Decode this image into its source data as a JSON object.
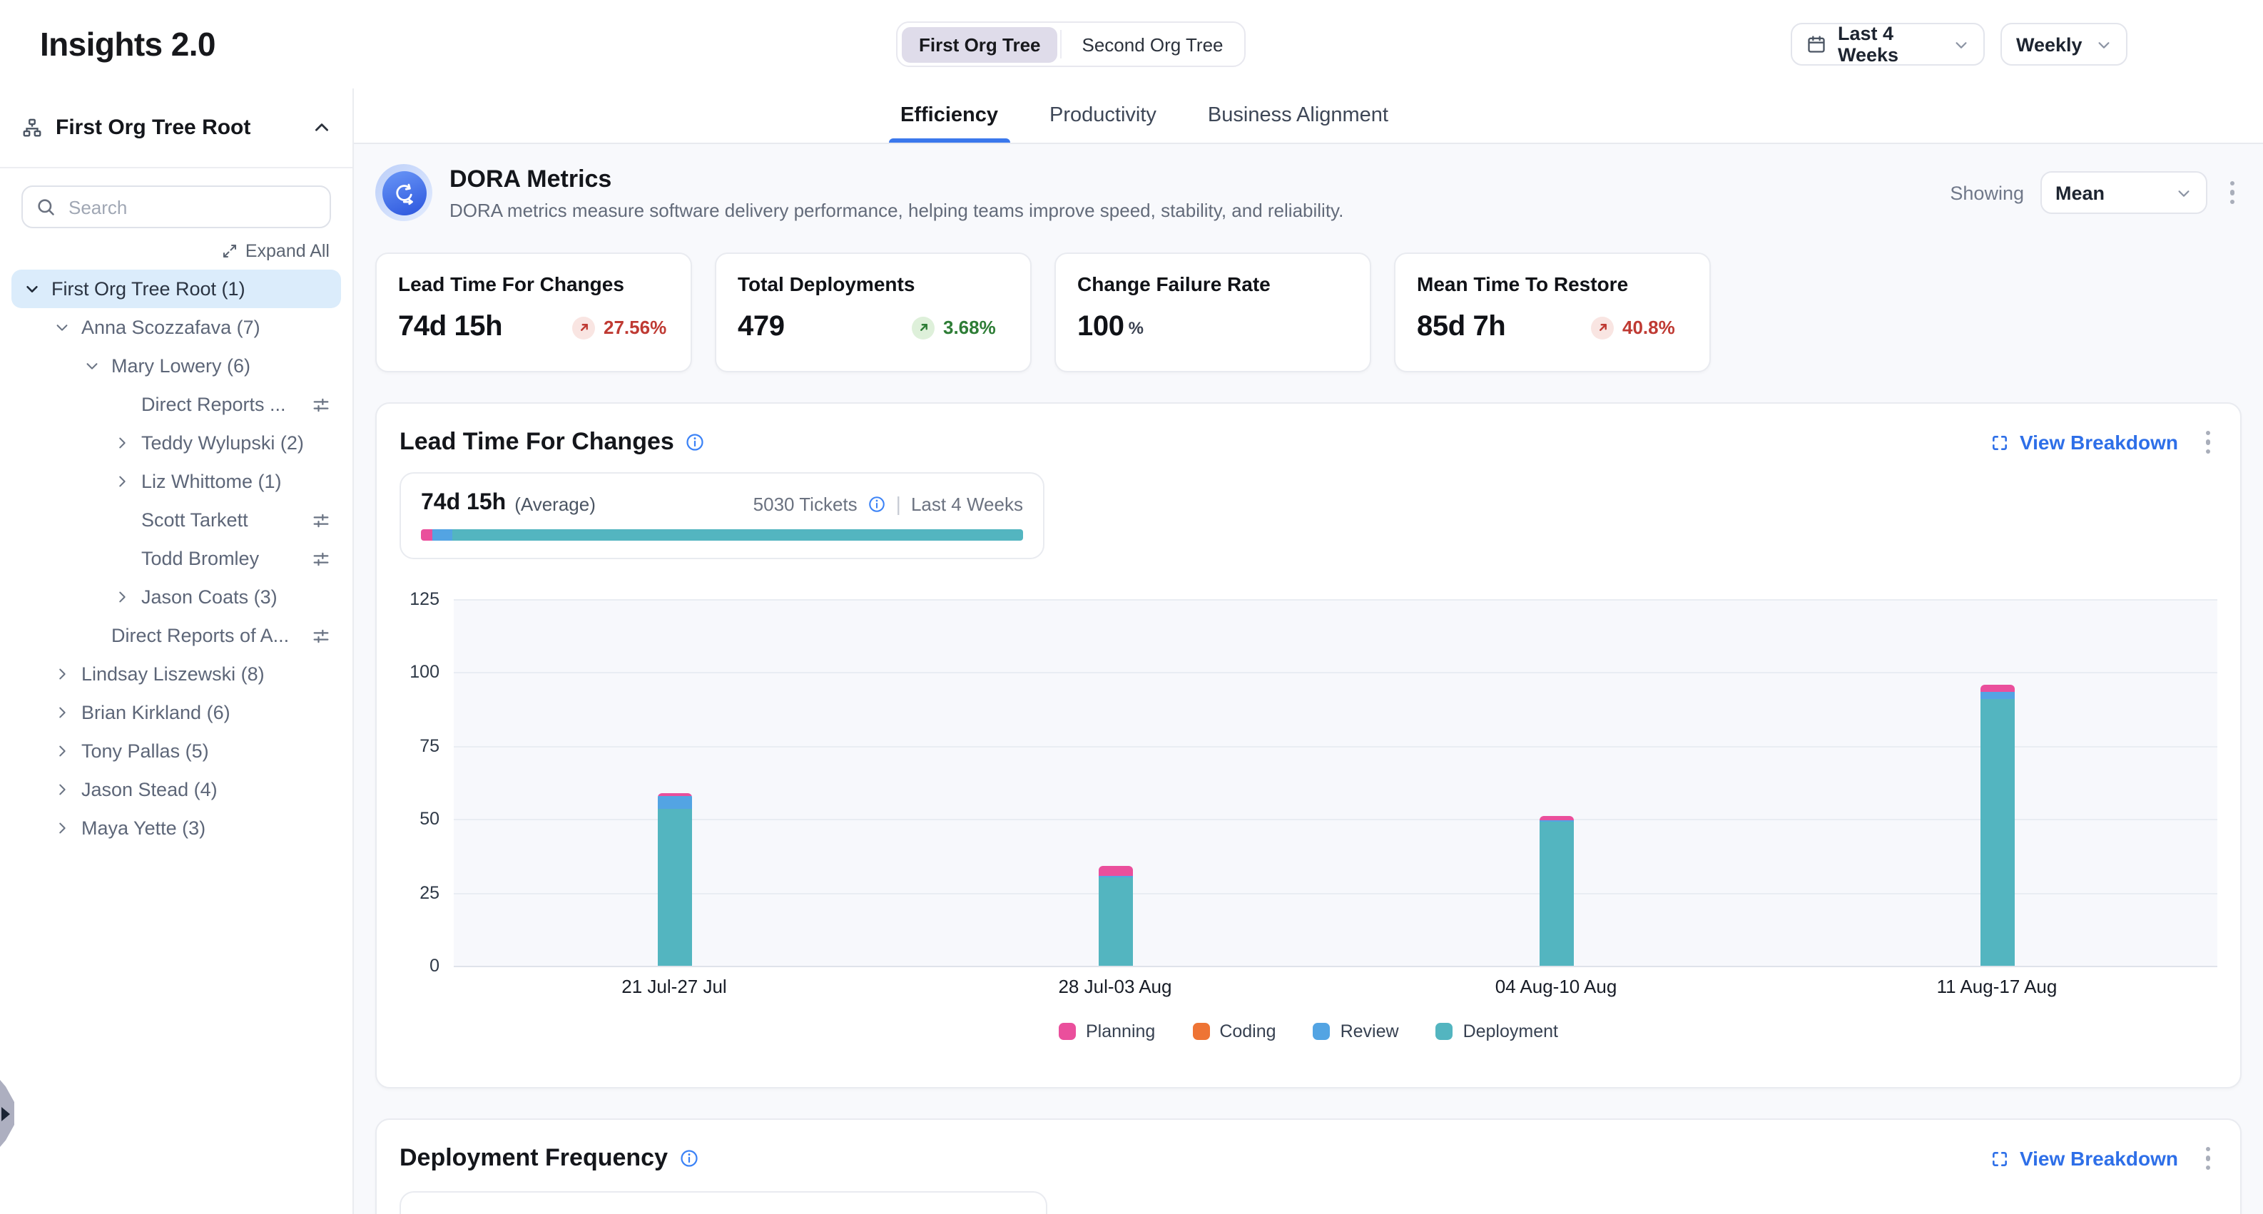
{
  "app": {
    "title": "Insights 2.0"
  },
  "header": {
    "org_toggle": {
      "options": [
        "First Org Tree",
        "Second Org Tree"
      ],
      "selected_index": 0
    },
    "date_range_label": "Last 4 Weeks",
    "granularity_label": "Weekly"
  },
  "sidebar": {
    "title": "First Org Tree Root",
    "search_placeholder": "Search",
    "expand_all_label": "Expand All",
    "tree": [
      {
        "label": "First Org Tree Root (1)",
        "level": 0,
        "chevron": "down",
        "selected": true,
        "filter_icon": false
      },
      {
        "label": "Anna Scozzafava (7)",
        "level": 1,
        "chevron": "down",
        "selected": false,
        "filter_icon": false
      },
      {
        "label": "Mary Lowery (6)",
        "level": 2,
        "chevron": "down",
        "selected": false,
        "filter_icon": false
      },
      {
        "label": "Direct Reports ...",
        "level": 3,
        "chevron": "none",
        "selected": false,
        "filter_icon": true
      },
      {
        "label": "Teddy Wylupski (2)",
        "level": 3,
        "chevron": "right",
        "selected": false,
        "filter_icon": false
      },
      {
        "label": "Liz Whittome (1)",
        "level": 3,
        "chevron": "right",
        "selected": false,
        "filter_icon": false
      },
      {
        "label": "Scott Tarkett",
        "level": 3,
        "chevron": "none",
        "selected": false,
        "filter_icon": true
      },
      {
        "label": "Todd Bromley",
        "level": 3,
        "chevron": "none",
        "selected": false,
        "filter_icon": true
      },
      {
        "label": "Jason Coats (3)",
        "level": 3,
        "chevron": "right",
        "selected": false,
        "filter_icon": false
      },
      {
        "label": "Direct Reports of A...",
        "level": 2,
        "chevron": "none",
        "selected": false,
        "filter_icon": true
      },
      {
        "label": "Lindsay Liszewski (8)",
        "level": 1,
        "chevron": "right",
        "selected": false,
        "filter_icon": false
      },
      {
        "label": "Brian Kirkland (6)",
        "level": 1,
        "chevron": "right",
        "selected": false,
        "filter_icon": false
      },
      {
        "label": "Tony Pallas (5)",
        "level": 1,
        "chevron": "right",
        "selected": false,
        "filter_icon": false
      },
      {
        "label": "Jason Stead (4)",
        "level": 1,
        "chevron": "right",
        "selected": false,
        "filter_icon": false
      },
      {
        "label": "Maya Yette (3)",
        "level": 1,
        "chevron": "right",
        "selected": false,
        "filter_icon": false
      }
    ]
  },
  "tabs": {
    "items": [
      "Efficiency",
      "Productivity",
      "Business Alignment"
    ],
    "active_index": 0
  },
  "dora": {
    "title": "DORA Metrics",
    "description": "DORA metrics measure software delivery performance, helping teams improve speed, stability, and reliability.",
    "showing_label": "Showing",
    "showing_value": "Mean"
  },
  "metric_cards": [
    {
      "title": "Lead Time For Changes",
      "value": "74d 15h",
      "unit": "",
      "delta": "27.56%",
      "trend": "up",
      "sentiment": "negative"
    },
    {
      "title": "Total Deployments",
      "value": "479",
      "unit": "",
      "delta": "3.68%",
      "trend": "up",
      "sentiment": "positive"
    },
    {
      "title": "Change Failure Rate",
      "value": "100",
      "unit": "%",
      "delta": "",
      "trend": "",
      "sentiment": ""
    },
    {
      "title": "Mean Time To Restore",
      "value": "85d 7h",
      "unit": "",
      "delta": "40.8%",
      "trend": "up",
      "sentiment": "negative"
    }
  ],
  "lead_time": {
    "title": "Lead Time For Changes",
    "view_breakdown_label": "View Breakdown",
    "summary": {
      "value": "74d 15h",
      "value_suffix": "(Average)",
      "tickets": "5030 Tickets",
      "range": "Last 4 Weeks",
      "bar_segments": [
        {
          "name": "Planning",
          "color": "#ea4f9c",
          "pct": 1.8
        },
        {
          "name": "Review",
          "color": "#53a4e3",
          "pct": 3.4
        },
        {
          "name": "Deployment",
          "color": "#53b5c0",
          "pct": 94.8
        }
      ]
    }
  },
  "chart_data": {
    "type": "bar",
    "stacked": true,
    "title": "Lead Time For Changes",
    "categories": [
      "21 Jul-27 Jul",
      "28 Jul-03 Aug",
      "04 Aug-10 Aug",
      "11 Aug-17 Aug"
    ],
    "series": [
      {
        "name": "Planning",
        "color": "#ea4f9c",
        "values": [
          1.0,
          3.2,
          1.2,
          2.2
        ]
      },
      {
        "name": "Coding",
        "color": "#ee7435",
        "values": [
          0,
          0,
          0,
          0
        ]
      },
      {
        "name": "Review",
        "color": "#53a4e3",
        "values": [
          4.5,
          0.6,
          0.8,
          2.4
        ]
      },
      {
        "name": "Deployment",
        "color": "#53b5c0",
        "values": [
          53.5,
          30.2,
          49.0,
          91.0
        ]
      }
    ],
    "xlabel": "",
    "ylabel": "",
    "ylim": [
      0,
      125
    ],
    "yticks": [
      0,
      25,
      50,
      75,
      100,
      125
    ],
    "grid": true,
    "legend": [
      "Planning",
      "Coding",
      "Review",
      "Deployment"
    ],
    "legend_position": "bottom"
  },
  "deployment_frequency": {
    "title": "Deployment Frequency",
    "view_breakdown_label": "View Breakdown"
  }
}
